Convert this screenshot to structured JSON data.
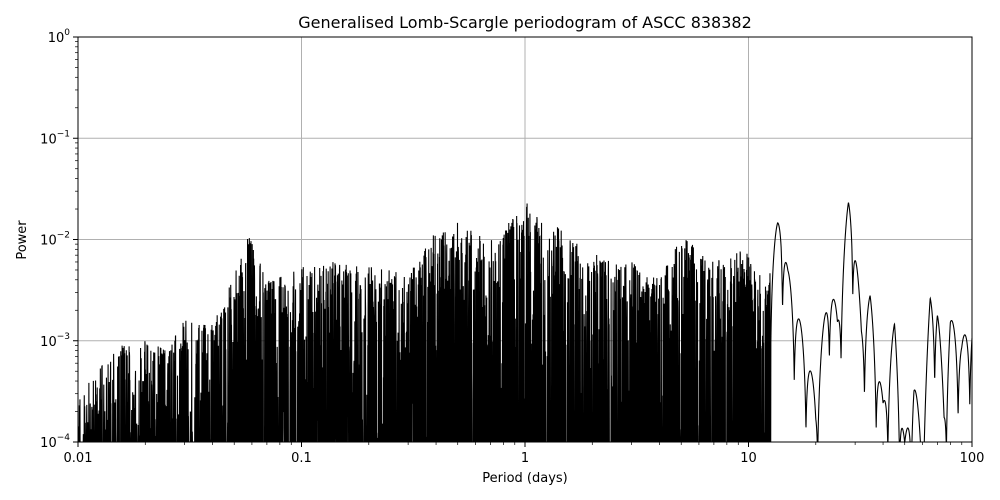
{
  "chart_data": {
    "type": "line",
    "title": "Generalised Lomb-Scargle periodogram of ASCC 838382",
    "xlabel": "Period (days)",
    "ylabel": "Power",
    "xscale": "log",
    "yscale": "log",
    "xlim": [
      0.01,
      100
    ],
    "ylim": [
      0.0001,
      1
    ],
    "grid": true,
    "line_color": "#000000",
    "x_ticks": [
      {
        "value": 0.01,
        "label": "0.01"
      },
      {
        "value": 0.1,
        "label": "0.1"
      },
      {
        "value": 1,
        "label": "1"
      },
      {
        "value": 10,
        "label": "10"
      },
      {
        "value": 100,
        "label": "100"
      }
    ],
    "y_ticks": [
      {
        "value": 0.0001,
        "base": "10",
        "exp": "−4"
      },
      {
        "value": 0.001,
        "base": "10",
        "exp": "−3"
      },
      {
        "value": 0.01,
        "base": "10",
        "exp": "−2"
      },
      {
        "value": 0.1,
        "base": "10",
        "exp": "−1"
      },
      {
        "value": 1,
        "base": "10",
        "exp": "0"
      }
    ],
    "series": [
      {
        "x": [
          0.01,
          0.012,
          0.015,
          0.02,
          0.025,
          0.03,
          0.04,
          0.05,
          0.058,
          0.07,
          0.1,
          0.15,
          0.2,
          0.3,
          0.38,
          0.5,
          0.7,
          0.95,
          1.0,
          1.5,
          2.0,
          3.0,
          4.0,
          5.0,
          7.0,
          9.5,
          12.0,
          13.5,
          14.0,
          15.0,
          18.0,
          20.0,
          23.0,
          25.0,
          28.0,
          29.0,
          32.0,
          35.0,
          40.0,
          45.0,
          50.0,
          55.0,
          60.0,
          65.0,
          70.0,
          75.0,
          80.0,
          90.0,
          100.0
        ],
        "y": [
          0.0003,
          0.0005,
          0.0009,
          0.001,
          0.0009,
          0.0016,
          0.0015,
          0.0045,
          0.012,
          0.004,
          0.006,
          0.006,
          0.0055,
          0.0045,
          0.011,
          0.015,
          0.01,
          0.02,
          0.024,
          0.012,
          0.008,
          0.006,
          0.004,
          0.011,
          0.006,
          0.0085,
          0.0035,
          0.015,
          0.018,
          0.005,
          0.0009,
          0.0003,
          0.0045,
          0.0018,
          0.025,
          0.024,
          0.0016,
          0.0028,
          0.00025,
          0.0015,
          0.0001,
          0.00045,
          0.0001,
          0.0028,
          0.0025,
          0.00027,
          0.0017,
          0.001,
          0.0017
        ]
      }
    ]
  }
}
